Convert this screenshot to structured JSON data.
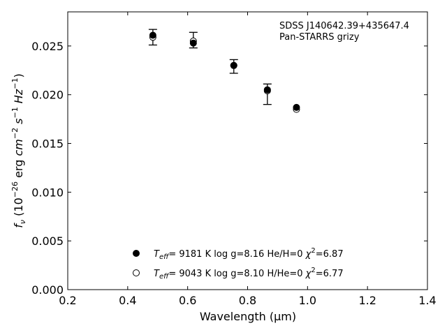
{
  "chart_data": {
    "type": "scatter",
    "title": "",
    "annotation": [
      "SDSS J140642.39+435647.4",
      "Pan-STARRS grizy"
    ],
    "xlabel": "Wavelength",
    "xlabel_unit": "μm",
    "ylabel_unit": "erg",
    "xlim": [
      0.2,
      1.4
    ],
    "ylim": [
      0.0,
      0.0285
    ],
    "xticks": [
      "0.2",
      "0.4",
      "0.6",
      "0.8",
      "1.0",
      "1.2",
      "1.4"
    ],
    "yticks": [
      "0.000",
      "0.005",
      "0.010",
      "0.015",
      "0.020",
      "0.025"
    ],
    "grid": false,
    "legend_placement": "lower-center",
    "observed": {
      "x": [
        0.484,
        0.619,
        0.754,
        0.866,
        0.963
      ],
      "y": [
        0.0259,
        0.0256,
        0.0229,
        0.0205,
        0.0186
      ],
      "yerr_low": [
        0.0008,
        0.0008,
        0.0007,
        0.0015,
        0.0
      ],
      "yerr_high": [
        0.0008,
        0.0008,
        0.0007,
        0.0006,
        0.0
      ]
    },
    "series": [
      {
        "name": "9181 K  log g=8.16  He/H=0  χ²=6.87",
        "legend_teff": "9181 K",
        "legend_logg": "log g=8.16",
        "legend_comp": "He/H=0",
        "legend_chi": "=6.87",
        "marker": "filled",
        "x": [
          0.484,
          0.619,
          0.754,
          0.866,
          0.963
        ],
        "y": [
          0.0261,
          0.0253,
          0.023,
          0.0205,
          0.0187
        ]
      },
      {
        "name": "9043 K  log g=8.10  H/He=0  χ²=6.77",
        "legend_teff": "9043 K",
        "legend_logg": "log g=8.10",
        "legend_comp": "H/He=0",
        "legend_chi": "=6.77",
        "marker": "open",
        "x": [
          0.484,
          0.619,
          0.754,
          0.866,
          0.963
        ],
        "y": [
          0.0259,
          0.0255,
          0.023,
          0.0204,
          0.0185
        ]
      }
    ]
  }
}
